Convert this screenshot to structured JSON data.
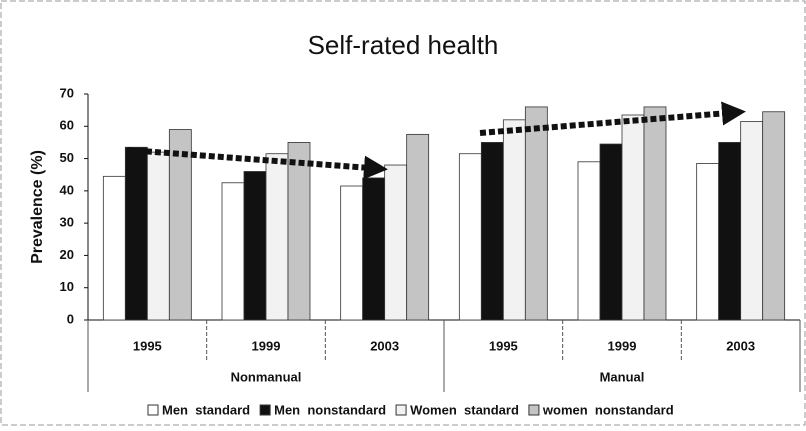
{
  "chart_data": {
    "type": "bar",
    "title": "Self-rated health",
    "y_label": "Prevalence (%)",
    "categories": [
      "1995",
      "1999",
      "2003",
      "1995",
      "1999",
      "2003"
    ],
    "groups": [
      "Nonmanual",
      "Manual"
    ],
    "series": [
      {
        "name": "Men  standard",
        "color": "#ffffff",
        "values": [
          44.5,
          42.5,
          41.5,
          51.5,
          49,
          48.5
        ]
      },
      {
        "name": "Men  nonstandard",
        "color": "#111111",
        "values": [
          53.5,
          46,
          44,
          55,
          54.5,
          55
        ]
      },
      {
        "name": "Women  standard",
        "color": "#f2f2f2",
        "values": [
          52,
          51.5,
          48,
          62,
          63.5,
          61.5
        ]
      },
      {
        "name": "women  nonstandard",
        "color": "#c4c4c4",
        "values": [
          59,
          55,
          57.5,
          66,
          66,
          64.5
        ]
      }
    ],
    "ylim": [
      0,
      70
    ],
    "yticks": [
      0,
      10,
      20,
      30,
      40,
      50,
      60,
      70
    ],
    "legend": "bottom"
  }
}
